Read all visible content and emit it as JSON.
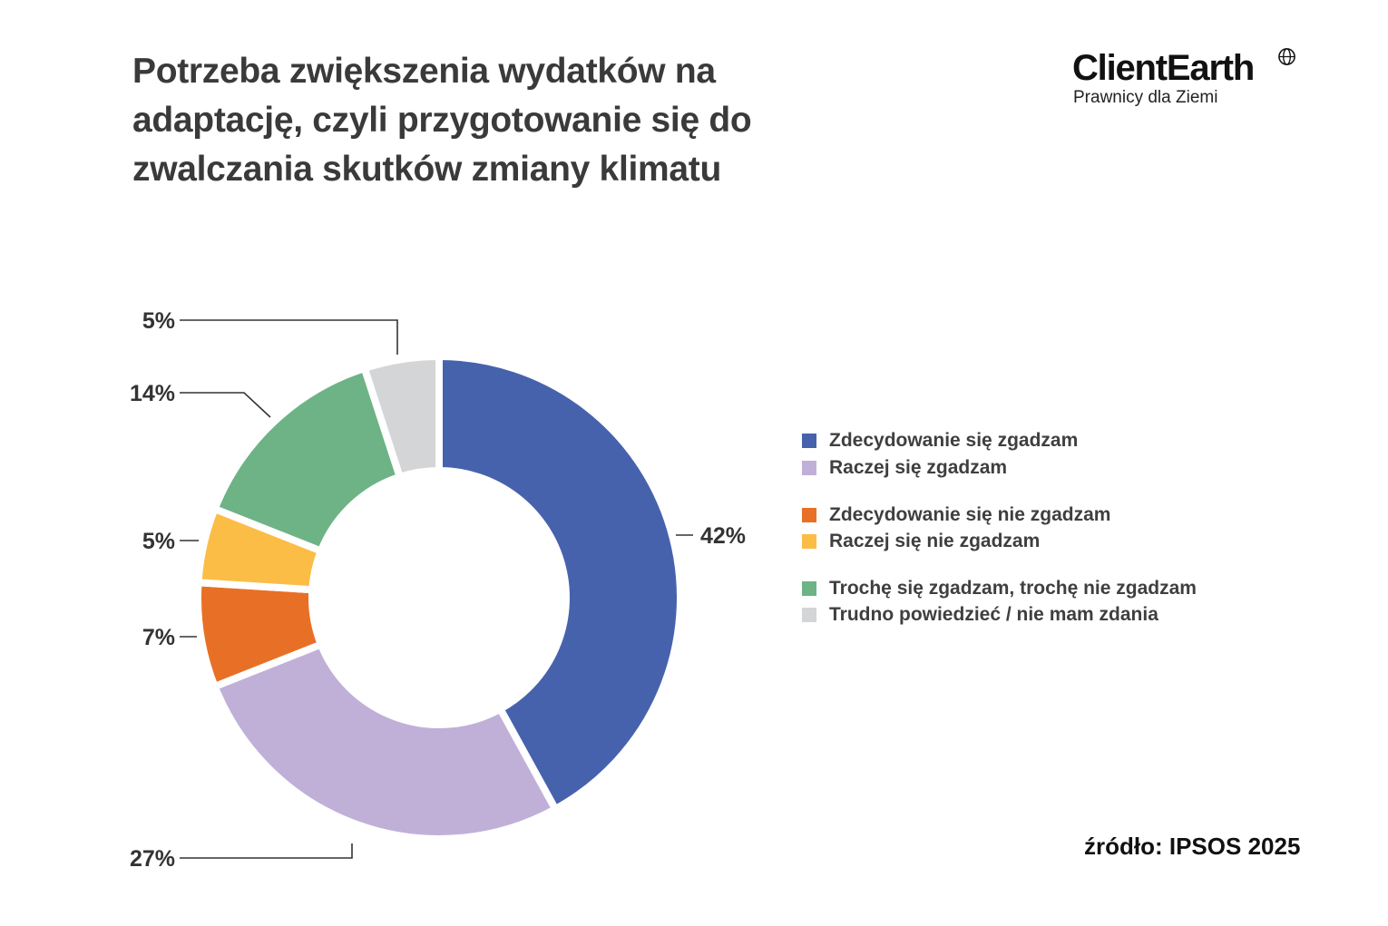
{
  "title": "Potrzeba zwiększenia wydatków na adaptację, czyli przygotowanie się do zwalczania skutków zmiany klimatu",
  "logo": {
    "name": "ClientEarth",
    "tagline": "Prawnicy dla Ziemi",
    "icon": "globe-icon"
  },
  "source": "źródło: IPSOS 2025",
  "chart_data": {
    "type": "pie",
    "variant": "donut",
    "title": "Potrzeba zwiększenia wydatków na adaptację, czyli przygotowanie się do zwalczania skutków zmiany klimatu",
    "legend_position": "right",
    "slices": [
      {
        "name": "Zdecydowanie się zgadzam",
        "value": 42,
        "label": "42%",
        "color": "#4762ad"
      },
      {
        "name": "Raczej się zgadzam",
        "value": 27,
        "label": "27%",
        "color": "#c0b0d8"
      },
      {
        "name": "Zdecydowanie się nie zgadzam",
        "value": 7,
        "label": "7%",
        "color": "#e87026"
      },
      {
        "name": "Raczej się nie zgadzam",
        "value": 5,
        "label": "5%",
        "color": "#fbbd46"
      },
      {
        "name": "Trochę się zgadzam, trochę nie zgadzam",
        "value": 14,
        "label": "14%",
        "color": "#6db386"
      },
      {
        "name": "Trudno powiedzieć / nie mam zdania",
        "value": 5,
        "label": "5%",
        "color": "#d4d5d7"
      }
    ]
  }
}
